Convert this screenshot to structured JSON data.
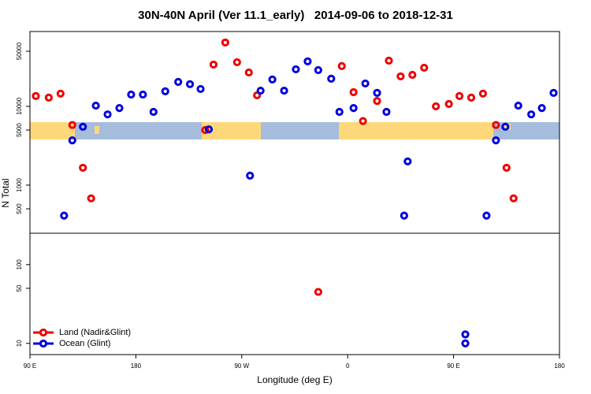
{
  "chart_data": [
    {
      "type": "scatter",
      "title": "30N-40N April (Ver 11.1_early)   2014-09-06 to 2018-12-31",
      "ylabel": "N Total",
      "log_y": true,
      "xlim": [
        90,
        540
      ],
      "ylim": [
        245,
        89000
      ],
      "yticks": [
        500,
        1000,
        5000,
        10000,
        50000
      ],
      "series": [
        {
          "color": "#ee0000",
          "x": [
            95,
            106,
            116,
            126,
            135,
            142,
            239,
            246,
            256,
            266,
            276,
            283,
            355,
            365,
            373,
            385,
            395,
            405,
            415,
            425,
            435,
            446,
            455,
            465,
            475,
            486,
            495,
            501
          ],
          "values": [
            13500,
            12900,
            14500,
            5800,
            1660,
            680,
            5000,
            33900,
            64600,
            36300,
            26900,
            13800,
            32400,
            15100,
            6500,
            11700,
            38000,
            24000,
            25100,
            30900,
            10000,
            10700,
            13500,
            12900,
            14500,
            5800,
            1660,
            680
          ]
        },
        {
          "color": "#0000dd",
          "x": [
            119,
            126,
            135,
            146,
            156,
            166,
            176,
            186,
            195,
            205,
            216,
            226,
            235,
            242,
            277,
            286,
            296,
            306,
            316,
            326,
            335,
            346,
            353,
            365,
            375,
            385,
            393,
            408,
            411,
            478,
            486,
            494,
            505,
            516,
            525,
            535
          ],
          "values": [
            410,
            3700,
            5500,
            10200,
            7900,
            9500,
            14100,
            14100,
            8500,
            15500,
            20400,
            19100,
            16600,
            5100,
            1320,
            15800,
            21900,
            15800,
            29500,
            37200,
            28800,
            22400,
            8500,
            9500,
            19500,
            14800,
            8500,
            410,
            2000,
            410,
            3700,
            5500,
            10200,
            7900,
            9500,
            14800
          ]
        }
      ]
    },
    {
      "type": "scatter",
      "xlabel": "Longitude (deg E)",
      "log_y": true,
      "xlim": [
        90,
        540
      ],
      "ylim": [
        7.2,
        250
      ],
      "xticks": [
        {
          "value": 90,
          "label": "90 E"
        },
        180,
        {
          "value": 270,
          "label": "90 W"
        },
        {
          "value": 360,
          "label": "0"
        },
        {
          "value": 450,
          "label": "90 E"
        },
        {
          "value": 540,
          "label": "180"
        }
      ],
      "yticks": [
        10,
        50,
        100
      ],
      "legend": "bottom-left",
      "series": [
        {
          "name": "Land (Nadir&Glint)",
          "color": "#ee0000",
          "x": [
            335
          ],
          "values": [
            45
          ]
        },
        {
          "name": "Ocean (Glint)",
          "color": "#0000dd",
          "x": [
            460,
            460
          ],
          "values": [
            13,
            10
          ]
        }
      ]
    }
  ]
}
